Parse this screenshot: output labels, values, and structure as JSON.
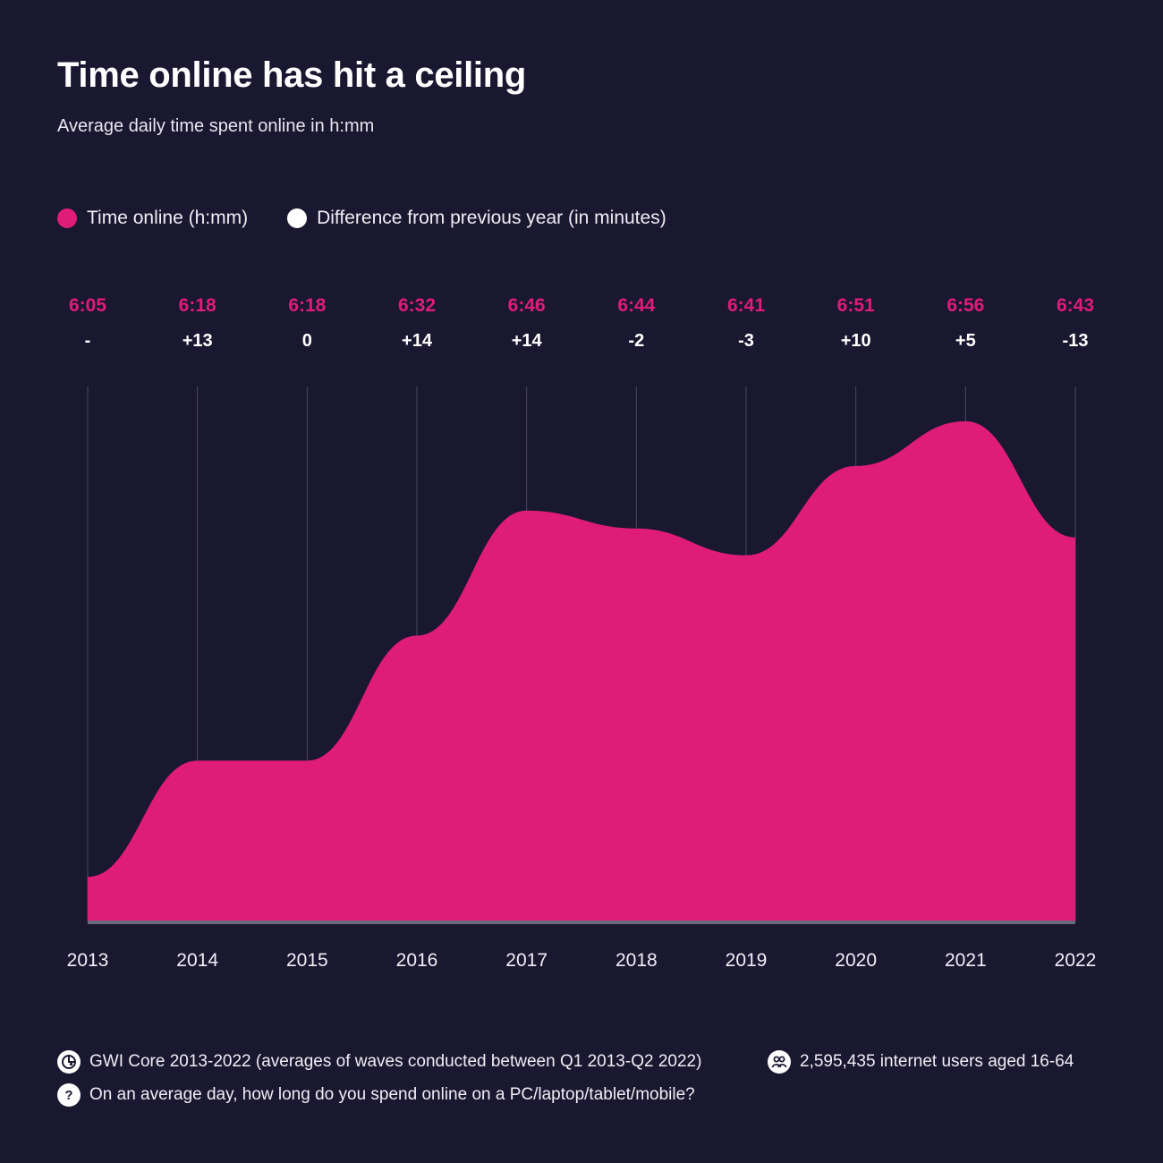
{
  "header": {
    "title": "Time online has hit a ceiling",
    "subtitle": "Average daily time spent online in h:mm"
  },
  "legend": {
    "items": [
      {
        "label": "Time online (h:mm)",
        "color": "#e01c79"
      },
      {
        "label": "Difference from previous year (in minutes)",
        "color": "#ffffff"
      }
    ]
  },
  "chart_data": {
    "type": "area",
    "title": "Time online has hit a ceiling",
    "subtitle": "Average daily time spent online in h:mm",
    "categories": [
      "2013",
      "2014",
      "2015",
      "2016",
      "2017",
      "2018",
      "2019",
      "2020",
      "2021",
      "2022"
    ],
    "series": [
      {
        "name": "Time online (h:mm)",
        "labels": [
          "6:05",
          "6:18",
          "6:18",
          "6:32",
          "6:46",
          "6:44",
          "6:41",
          "6:51",
          "6:56",
          "6:43"
        ],
        "values_minutes": [
          365,
          378,
          378,
          392,
          406,
          404,
          401,
          411,
          416,
          403
        ],
        "color": "#e01c79"
      },
      {
        "name": "Difference from previous year (in minutes)",
        "labels": [
          "-",
          "+13",
          "0",
          "+14",
          "+14",
          "-2",
          "-3",
          "+10",
          "+5",
          "-13"
        ],
        "color": "#ffffff"
      }
    ],
    "grid": "vertical",
    "legend_position": "top-left"
  },
  "colors": {
    "background": "#1a1730",
    "accent": "#e01c79",
    "gridline": "#4a4763",
    "baseline": "#6a6780"
  },
  "footer": {
    "source": "GWI Core 2013-2022 (averages of waves conducted between Q1 2013-Q2 2022)",
    "base": "2,595,435 internet users aged 16-64",
    "question": "On an average day, how long do you spend online on a PC/laptop/tablet/mobile?",
    "question_icon": "?",
    "source_icon": "gwi-logo-icon",
    "base_icon": "people-icon"
  }
}
